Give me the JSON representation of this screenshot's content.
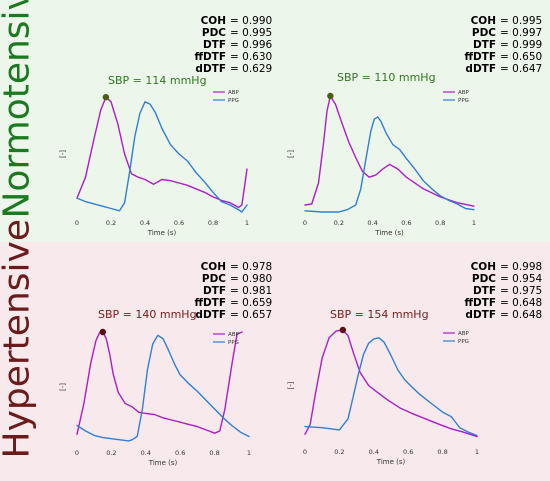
{
  "groups": {
    "normotensive": "Normotensive",
    "hypertensive": "Hypertensive"
  },
  "colors": {
    "abp": "#b01cc9",
    "ppg": "#2f7fd6",
    "normo_bg": "#edf6ea",
    "hyper_bg": "#f8eaec",
    "normo_dot": "#4a5d12",
    "hyper_dot": "#5a1010"
  },
  "panels": [
    {
      "metrics": [
        {
          "k": "COH",
          "v": "= 0.990"
        },
        {
          "k": "PDC",
          "v": "= 0.995"
        },
        {
          "k": "DTF",
          "v": "= 0.996"
        },
        {
          "k": "ffDTF",
          "v": "= 0.630"
        },
        {
          "k": "dDTF",
          "v": "= 0.629"
        }
      ],
      "sbp_label": "SBP = 114 mmHg"
    },
    {
      "metrics": [
        {
          "k": "COH",
          "v": "= 0.995"
        },
        {
          "k": "PDC",
          "v": "= 0.997"
        },
        {
          "k": "DTF",
          "v": "= 0.999"
        },
        {
          "k": "ffDTF",
          "v": "= 0.650"
        },
        {
          "k": "dDTF",
          "v": "= 0.647"
        }
      ],
      "sbp_label": "SBP = 110 mmHg"
    },
    {
      "metrics": [
        {
          "k": "COH",
          "v": "= 0.978"
        },
        {
          "k": "PDC",
          "v": "= 0.980"
        },
        {
          "k": "DTF",
          "v": "= 0.981"
        },
        {
          "k": "ffDTF",
          "v": "= 0.659"
        },
        {
          "k": "dDTF",
          "v": "= 0.657"
        }
      ],
      "sbp_label": "SBP = 140 mmHg"
    },
    {
      "metrics": [
        {
          "k": "COH",
          "v": "= 0.998"
        },
        {
          "k": "PDC",
          "v": "= 0.954"
        },
        {
          "k": "DTF",
          "v": "= 0.975"
        },
        {
          "k": "ffDTF",
          "v": "= 0.648"
        },
        {
          "k": "dDTF",
          "v": "= 0.648"
        }
      ],
      "sbp_label": "SBP = 154 mmHg"
    }
  ],
  "chart_data": [
    {
      "type": "line",
      "xlabel": "Time (s)",
      "ylabel": "[-]",
      "xlim": [
        0,
        1
      ],
      "ylim": [
        0,
        1
      ],
      "xticks": [
        "0",
        "0.2",
        "0.4",
        "0.6",
        "0.8",
        "1"
      ],
      "legend": [
        "ABP",
        "PPG"
      ],
      "legend_position": "top-right",
      "marker": {
        "x": 0.17,
        "y": 0.99
      },
      "series": [
        {
          "name": "ABP",
          "x": [
            0,
            0.05,
            0.1,
            0.14,
            0.17,
            0.2,
            0.24,
            0.28,
            0.32,
            0.36,
            0.4,
            0.45,
            0.5,
            0.55,
            0.6,
            0.65,
            0.7,
            0.75,
            0.8,
            0.85,
            0.9,
            0.95,
            0.97,
            1.0
          ],
          "y": [
            0.12,
            0.3,
            0.63,
            0.88,
            0.99,
            0.95,
            0.76,
            0.5,
            0.33,
            0.3,
            0.28,
            0.24,
            0.28,
            0.27,
            0.25,
            0.23,
            0.2,
            0.17,
            0.13,
            0.1,
            0.08,
            0.04,
            0.06,
            0.37
          ]
        },
        {
          "name": "PPG",
          "x": [
            0,
            0.05,
            0.1,
            0.15,
            0.2,
            0.25,
            0.28,
            0.31,
            0.34,
            0.37,
            0.4,
            0.43,
            0.46,
            0.5,
            0.55,
            0.6,
            0.65,
            0.7,
            0.75,
            0.8,
            0.85,
            0.9,
            0.95,
            0.97,
            1.0
          ],
          "y": [
            0.12,
            0.09,
            0.07,
            0.05,
            0.03,
            0.01,
            0.08,
            0.35,
            0.65,
            0.85,
            0.95,
            0.93,
            0.86,
            0.72,
            0.58,
            0.5,
            0.44,
            0.34,
            0.26,
            0.17,
            0.09,
            0.06,
            0.02,
            0.0,
            0.06
          ]
        }
      ]
    },
    {
      "type": "line",
      "xlabel": "Time (s)",
      "ylabel": "[-]",
      "xlim": [
        0,
        1
      ],
      "ylim": [
        0,
        1
      ],
      "xticks": [
        "0",
        "0.2",
        "0.4",
        "0.6",
        "0.8",
        "1"
      ],
      "legend": [
        "ABP",
        "PPG"
      ],
      "legend_position": "top-right",
      "marker": {
        "x": 0.15,
        "y": 1.0
      },
      "series": [
        {
          "name": "ABP",
          "x": [
            0,
            0.04,
            0.08,
            0.11,
            0.13,
            0.15,
            0.18,
            0.22,
            0.26,
            0.3,
            0.34,
            0.38,
            0.42,
            0.46,
            0.5,
            0.55,
            0.6,
            0.7,
            0.8,
            0.9,
            1.0
          ],
          "y": [
            0.06,
            0.07,
            0.25,
            0.6,
            0.87,
            1.0,
            0.93,
            0.76,
            0.6,
            0.47,
            0.35,
            0.3,
            0.32,
            0.37,
            0.41,
            0.37,
            0.3,
            0.2,
            0.13,
            0.08,
            0.05
          ]
        },
        {
          "name": "PPG",
          "x": [
            0,
            0.1,
            0.2,
            0.25,
            0.3,
            0.33,
            0.36,
            0.39,
            0.41,
            0.43,
            0.45,
            0.48,
            0.52,
            0.56,
            0.6,
            0.65,
            0.7,
            0.75,
            0.8,
            0.85,
            0.9,
            0.95,
            1.0
          ],
          "y": [
            0.01,
            0.0,
            0.0,
            0.02,
            0.06,
            0.2,
            0.45,
            0.7,
            0.8,
            0.82,
            0.78,
            0.68,
            0.58,
            0.54,
            0.46,
            0.37,
            0.27,
            0.2,
            0.14,
            0.1,
            0.07,
            0.03,
            0.02
          ]
        }
      ]
    },
    {
      "type": "line",
      "xlabel": "Time (s)",
      "ylabel": "[-]",
      "xlim": [
        0,
        1
      ],
      "ylim": [
        0,
        1
      ],
      "xticks": [
        "0",
        "0.2",
        "0.4",
        "0.6",
        "0.8",
        "1"
      ],
      "legend": [
        "ABP",
        "PPG"
      ],
      "legend_position": "top-right",
      "marker": {
        "x": 0.15,
        "y": 1.0
      },
      "series": [
        {
          "name": "ABP",
          "x": [
            0,
            0.04,
            0.08,
            0.11,
            0.13,
            0.15,
            0.17,
            0.19,
            0.21,
            0.24,
            0.28,
            0.32,
            0.36,
            0.4,
            0.45,
            0.5,
            0.55,
            0.6,
            0.65,
            0.7,
            0.75,
            0.8,
            0.83,
            0.86,
            0.9,
            0.93,
            0.96
          ],
          "y": [
            0.07,
            0.35,
            0.72,
            0.92,
            0.99,
            1.0,
            0.94,
            0.8,
            0.62,
            0.45,
            0.35,
            0.32,
            0.27,
            0.26,
            0.25,
            0.22,
            0.2,
            0.18,
            0.16,
            0.14,
            0.11,
            0.08,
            0.1,
            0.3,
            0.7,
            0.98,
            1.0
          ]
        },
        {
          "name": "PPG",
          "x": [
            0,
            0.05,
            0.1,
            0.15,
            0.2,
            0.25,
            0.3,
            0.32,
            0.35,
            0.38,
            0.41,
            0.44,
            0.47,
            0.5,
            0.53,
            0.57,
            0.6,
            0.65,
            0.7,
            0.75,
            0.8,
            0.85,
            0.9,
            0.95,
            1.0
          ],
          "y": [
            0.15,
            0.1,
            0.06,
            0.04,
            0.03,
            0.02,
            0.01,
            0.02,
            0.05,
            0.3,
            0.66,
            0.89,
            0.97,
            0.94,
            0.84,
            0.7,
            0.61,
            0.53,
            0.46,
            0.38,
            0.3,
            0.22,
            0.15,
            0.09,
            0.05
          ]
        }
      ]
    },
    {
      "type": "line",
      "xlabel": "Time (s)",
      "ylabel": "[-]",
      "xlim": [
        0,
        1
      ],
      "ylim": [
        0,
        1
      ],
      "xticks": [
        "0",
        "0.2",
        "0.4",
        "0.6",
        "0.8",
        "1"
      ],
      "legend": [
        "ABP",
        "PPG"
      ],
      "legend_position": "top-right",
      "marker": {
        "x": 0.22,
        "y": 1.0
      },
      "series": [
        {
          "name": "ABP",
          "x": [
            0,
            0.03,
            0.06,
            0.1,
            0.14,
            0.18,
            0.22,
            0.25,
            0.28,
            0.32,
            0.37,
            0.42,
            0.48,
            0.55,
            0.62,
            0.7,
            0.78,
            0.85,
            0.92,
            1.0
          ],
          "y": [
            0.06,
            0.15,
            0.42,
            0.75,
            0.93,
            0.99,
            1.0,
            0.95,
            0.8,
            0.62,
            0.5,
            0.44,
            0.37,
            0.3,
            0.25,
            0.2,
            0.15,
            0.11,
            0.08,
            0.04
          ]
        },
        {
          "name": "PPG",
          "x": [
            0,
            0.1,
            0.2,
            0.25,
            0.28,
            0.31,
            0.34,
            0.37,
            0.4,
            0.43,
            0.46,
            0.5,
            0.54,
            0.58,
            0.62,
            0.66,
            0.7,
            0.75,
            0.8,
            0.85,
            0.87,
            0.9,
            0.95,
            1.0
          ],
          "y": [
            0.13,
            0.12,
            0.1,
            0.2,
            0.4,
            0.6,
            0.78,
            0.88,
            0.92,
            0.93,
            0.89,
            0.77,
            0.64,
            0.55,
            0.49,
            0.43,
            0.38,
            0.32,
            0.26,
            0.22,
            0.18,
            0.12,
            0.08,
            0.05
          ]
        }
      ]
    }
  ]
}
